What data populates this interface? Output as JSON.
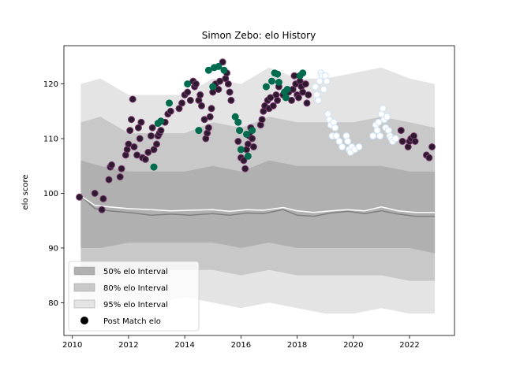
{
  "chart_data": {
    "type": "scatter",
    "title": "Simon Zebo: elo History",
    "xlabel": "",
    "ylabel": "elo score",
    "xlim": [
      2009.7,
      2023.6
    ],
    "ylim": [
      74,
      127
    ],
    "x_ticks": [
      2010,
      2012,
      2014,
      2016,
      2018,
      2020,
      2022
    ],
    "y_ticks": [
      80,
      90,
      100,
      110,
      120
    ],
    "grid": false,
    "legend_position": "lower-left",
    "legend": [
      {
        "label": "50% elo Interval",
        "color": "#b0b0b0",
        "kind": "patch"
      },
      {
        "label": "80% elo Interval",
        "color": "#c8c8c8",
        "kind": "patch"
      },
      {
        "label": "95% elo Interval",
        "color": "#e4e4e4",
        "kind": "patch"
      },
      {
        "label": "Post Match elo",
        "color": "#000000",
        "kind": "marker"
      }
    ],
    "bands": {
      "x": [
        2010.3,
        2011.0,
        2012.0,
        2013.0,
        2014.0,
        2015.0,
        2016.0,
        2017.0,
        2018.0,
        2019.0,
        2020.0,
        2021.0,
        2022.0,
        2022.9
      ],
      "p95_upper": [
        120,
        121,
        118,
        118,
        118,
        121,
        120,
        123,
        121,
        121,
        122,
        123,
        121,
        120
      ],
      "p95_lower": [
        79,
        79,
        80,
        80,
        81,
        80,
        79,
        80,
        79,
        78,
        78,
        79,
        78,
        78
      ],
      "p80_upper": [
        113,
        114,
        111,
        111,
        111,
        113,
        112,
        114,
        113,
        113,
        113,
        114,
        113,
        112
      ],
      "p80_lower": [
        85,
        85,
        86,
        86,
        86,
        86,
        85,
        86,
        85,
        85,
        85,
        85,
        84,
        84
      ],
      "p50_upper": [
        106,
        105,
        104,
        104,
        104,
        105,
        104,
        106,
        105,
        105,
        105,
        105,
        104,
        104
      ],
      "p50_lower": [
        90,
        90,
        91,
        91,
        91,
        91,
        90,
        91,
        90,
        90,
        90,
        90,
        90,
        89
      ]
    },
    "mean_line": {
      "x": [
        2010.3,
        2010.8,
        2011.3,
        2012.0,
        2012.8,
        2013.5,
        2014.2,
        2015.0,
        2015.6,
        2016.2,
        2016.8,
        2017.5,
        2018.0,
        2018.6,
        2019.2,
        2019.8,
        2020.4,
        2021.0,
        2021.6,
        2022.2,
        2022.9
      ],
      "y": [
        99.5,
        97.8,
        97.5,
        97.2,
        97.0,
        96.8,
        96.9,
        97.0,
        96.7,
        97.0,
        96.9,
        97.4,
        96.8,
        96.5,
        96.8,
        97.0,
        96.8,
        97.5,
        96.8,
        96.5,
        96.5
      ]
    },
    "median_line": {
      "x": [
        2010.3,
        2010.8,
        2011.3,
        2012.0,
        2012.8,
        2013.5,
        2014.2,
        2015.0,
        2015.6,
        2016.2,
        2016.8,
        2017.5,
        2018.0,
        2018.6,
        2019.2,
        2019.8,
        2020.4,
        2021.0,
        2021.6,
        2022.2,
        2022.9
      ],
      "y": [
        99.5,
        97.2,
        96.8,
        96.5,
        96.0,
        96.2,
        96.0,
        96.3,
        96.0,
        96.4,
        96.3,
        97.0,
        96.0,
        95.8,
        96.4,
        96.7,
        96.3,
        96.8,
        96.2,
        95.8,
        95.8
      ]
    },
    "series": [
      {
        "color_fill": "#2e1a2e",
        "color_edge": "#7a3a70",
        "points": [
          [
            2010.25,
            99.3
          ],
          [
            2010.8,
            100
          ],
          [
            2011.05,
            97
          ],
          [
            2011.1,
            99
          ],
          [
            2011.3,
            102.5
          ],
          [
            2011.35,
            104.8
          ],
          [
            2011.4,
            105.2
          ],
          [
            2011.7,
            103
          ],
          [
            2011.75,
            104.5
          ],
          [
            2011.9,
            107
          ],
          [
            2011.95,
            108
          ],
          [
            2012.0,
            109
          ],
          [
            2012.05,
            111.5
          ],
          [
            2012.1,
            113.5
          ],
          [
            2012.15,
            117.2
          ],
          [
            2012.2,
            108.5
          ],
          [
            2012.3,
            107
          ],
          [
            2012.35,
            112
          ],
          [
            2012.4,
            110
          ],
          [
            2012.45,
            113
          ],
          [
            2012.5,
            106.5
          ],
          [
            2012.6,
            106.2
          ],
          [
            2012.7,
            107.5
          ],
          [
            2012.8,
            110.5
          ],
          [
            2012.85,
            112
          ],
          [
            2012.9,
            108
          ],
          [
            2013.0,
            109
          ],
          [
            2013.05,
            110.5
          ],
          [
            2013.1,
            111
          ],
          [
            2013.15,
            111.5
          ],
          [
            2013.3,
            113
          ],
          [
            2013.4,
            114.5
          ],
          [
            2013.5,
            115
          ],
          [
            2013.8,
            115.5
          ],
          [
            2013.9,
            116.5
          ],
          [
            2014.0,
            118
          ],
          [
            2014.1,
            118.5
          ],
          [
            2014.2,
            117
          ],
          [
            2014.3,
            120.5
          ],
          [
            2014.35,
            119.5
          ],
          [
            2014.4,
            120
          ],
          [
            2014.5,
            117
          ],
          [
            2014.55,
            118
          ],
          [
            2014.6,
            116
          ],
          [
            2014.7,
            113.5
          ],
          [
            2014.75,
            110
          ],
          [
            2014.8,
            111
          ],
          [
            2014.85,
            112
          ],
          [
            2014.9,
            114
          ],
          [
            2014.95,
            115.5
          ],
          [
            2015.0,
            118.5
          ],
          [
            2015.1,
            120
          ],
          [
            2015.2,
            119
          ],
          [
            2015.25,
            120.5
          ],
          [
            2015.35,
            124
          ],
          [
            2015.45,
            121
          ],
          [
            2015.5,
            122
          ],
          [
            2015.55,
            120
          ],
          [
            2015.6,
            118.5
          ],
          [
            2015.65,
            117
          ],
          [
            2015.9,
            109.5
          ],
          [
            2016.0,
            106.5
          ],
          [
            2016.1,
            106
          ],
          [
            2016.15,
            104.5
          ],
          [
            2016.2,
            108
          ],
          [
            2016.25,
            109
          ],
          [
            2016.3,
            110.5
          ],
          [
            2016.35,
            112
          ],
          [
            2016.4,
            110
          ],
          [
            2016.45,
            108.5
          ],
          [
            2016.7,
            112.5
          ],
          [
            2016.75,
            113.5
          ],
          [
            2016.8,
            115
          ],
          [
            2016.85,
            116
          ],
          [
            2016.95,
            117
          ],
          [
            2017.0,
            115.5
          ],
          [
            2017.05,
            117.5
          ],
          [
            2017.15,
            116
          ],
          [
            2017.25,
            118
          ],
          [
            2017.3,
            117
          ],
          [
            2017.35,
            119.5
          ],
          [
            2017.5,
            118
          ],
          [
            2017.7,
            118.5
          ],
          [
            2017.8,
            117
          ],
          [
            2017.85,
            119
          ],
          [
            2017.9,
            121.5
          ],
          [
            2017.95,
            120
          ],
          [
            2018.0,
            118
          ],
          [
            2018.05,
            117.5
          ],
          [
            2018.1,
            120.5
          ],
          [
            2018.15,
            119.5
          ],
          [
            2018.2,
            118.5
          ],
          [
            2018.3,
            120
          ],
          [
            2018.35,
            116.5
          ],
          [
            2018.4,
            118
          ],
          [
            2021.7,
            111.5
          ],
          [
            2021.75,
            109.5
          ],
          [
            2021.95,
            108.5
          ],
          [
            2022.0,
            109.5
          ],
          [
            2022.05,
            110
          ],
          [
            2022.15,
            110.5
          ],
          [
            2022.2,
            109.5
          ],
          [
            2022.6,
            107
          ],
          [
            2022.7,
            106.5
          ],
          [
            2022.8,
            108.5
          ]
        ]
      },
      {
        "color_fill": "#006c4f",
        "color_edge": "#00694c",
        "points": [
          [
            2012.9,
            104.8
          ],
          [
            2013.05,
            112.8
          ],
          [
            2013.15,
            113.2
          ],
          [
            2013.45,
            116.5
          ],
          [
            2014.1,
            120
          ],
          [
            2014.5,
            111.5
          ],
          [
            2014.85,
            122.5
          ],
          [
            2015.0,
            119.5
          ],
          [
            2015.05,
            123
          ],
          [
            2015.2,
            123.2
          ],
          [
            2015.4,
            122.5
          ],
          [
            2015.8,
            114
          ],
          [
            2015.9,
            113
          ],
          [
            2015.95,
            111.5
          ],
          [
            2016.0,
            108
          ],
          [
            2016.2,
            110.8
          ],
          [
            2016.25,
            106.8
          ],
          [
            2016.4,
            111.5
          ],
          [
            2016.9,
            119.5
          ],
          [
            2017.1,
            120.5
          ],
          [
            2017.2,
            122
          ],
          [
            2017.3,
            121.8
          ],
          [
            2017.35,
            120.3
          ],
          [
            2017.55,
            118.5
          ],
          [
            2017.6,
            117.5
          ],
          [
            2017.65,
            119
          ],
          [
            2018.1,
            121.5
          ],
          [
            2018.2,
            122
          ]
        ]
      },
      {
        "color_fill": "#ffffff",
        "color_edge": "#cfe3f6",
        "points": [
          [
            2018.65,
            119.5
          ],
          [
            2018.7,
            118
          ],
          [
            2018.75,
            117
          ],
          [
            2018.8,
            120.5
          ],
          [
            2018.85,
            122
          ],
          [
            2018.9,
            121.5
          ],
          [
            2018.95,
            119
          ],
          [
            2019.0,
            121.5
          ],
          [
            2019.05,
            120.5
          ],
          [
            2019.1,
            114.5
          ],
          [
            2019.15,
            113.5
          ],
          [
            2019.2,
            112.5
          ],
          [
            2019.25,
            110.5
          ],
          [
            2019.3,
            113
          ],
          [
            2019.35,
            112
          ],
          [
            2019.4,
            110.5
          ],
          [
            2019.5,
            109.5
          ],
          [
            2019.6,
            108.5
          ],
          [
            2019.75,
            110.5
          ],
          [
            2019.8,
            109.5
          ],
          [
            2019.85,
            108
          ],
          [
            2019.9,
            107.5
          ],
          [
            2019.95,
            108.5
          ],
          [
            2020.05,
            108
          ],
          [
            2020.2,
            108.5
          ],
          [
            2020.7,
            110.5
          ],
          [
            2020.8,
            112.5
          ],
          [
            2020.85,
            111.5
          ],
          [
            2020.9,
            113
          ],
          [
            2020.95,
            110.5
          ],
          [
            2021.0,
            114.5
          ],
          [
            2021.05,
            115.5
          ],
          [
            2021.1,
            113.5
          ],
          [
            2021.15,
            112
          ],
          [
            2021.2,
            114
          ],
          [
            2021.25,
            111.5
          ],
          [
            2021.3,
            110.5
          ],
          [
            2021.35,
            110
          ],
          [
            2021.4,
            109.5
          ],
          [
            2021.5,
            110
          ]
        ]
      }
    ]
  }
}
